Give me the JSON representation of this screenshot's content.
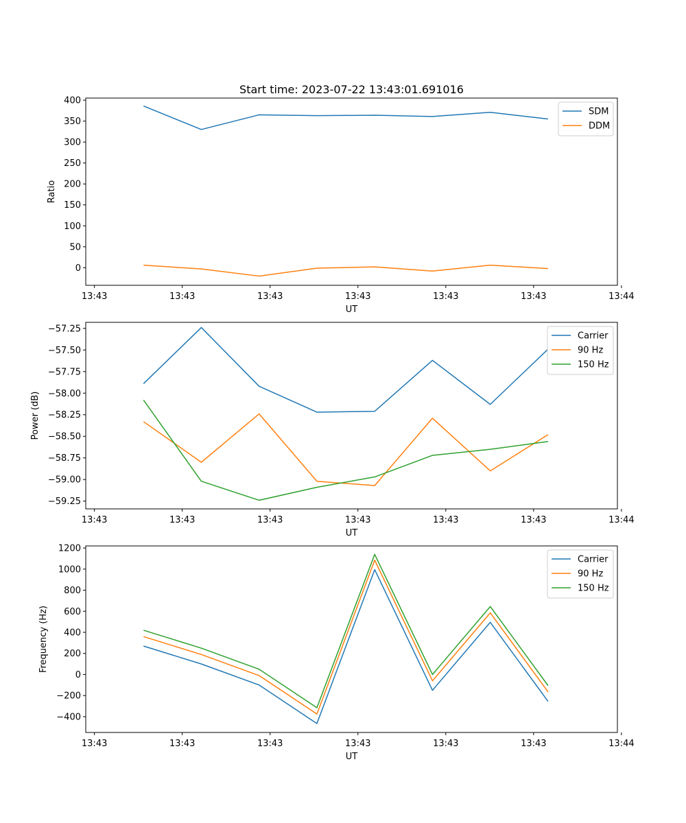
{
  "figure": {
    "title": "Start time: 2023-07-22 13:43:01.691016"
  },
  "chart_data": [
    {
      "type": "line",
      "title": "Start time: 2023-07-22 13:43:01.691016",
      "xlabel": "UT",
      "ylabel": "Ratio",
      "x": [
        1,
        2,
        3,
        4,
        5,
        6,
        7,
        8
      ],
      "xlim": [
        0,
        9.2
      ],
      "xticks": [
        0.15,
        1.67,
        3.19,
        4.71,
        6.23,
        7.75,
        9.27
      ],
      "xtick_labels": [
        "13:43",
        "13:43",
        "13:43",
        "13:43",
        "13:43",
        "13:43",
        "13:44"
      ],
      "ylim": [
        -42,
        405
      ],
      "yticks": [
        0,
        50,
        100,
        150,
        200,
        250,
        300,
        350,
        400
      ],
      "ytick_labels": [
        "0",
        "50",
        "100",
        "150",
        "200",
        "250",
        "300",
        "350",
        "400"
      ],
      "legend_position": "top-right",
      "series": [
        {
          "name": "SDM",
          "color": "#1f77b4",
          "values": [
            386,
            330,
            365,
            363,
            364,
            361,
            371,
            355
          ]
        },
        {
          "name": "DDM",
          "color": "#ff7f0e",
          "values": [
            6,
            -3,
            -20,
            -1,
            2,
            -8,
            6,
            -2
          ]
        }
      ]
    },
    {
      "type": "line",
      "title": "",
      "xlabel": "UT",
      "ylabel": "Power (dB)",
      "x": [
        1,
        2,
        3,
        4,
        5,
        6,
        7,
        8
      ],
      "xlim": [
        0,
        9.2
      ],
      "xticks": [
        0.15,
        1.67,
        3.19,
        4.71,
        6.23,
        7.75,
        9.27
      ],
      "xtick_labels": [
        "13:43",
        "13:43",
        "13:43",
        "13:43",
        "13:43",
        "13:43",
        "13:44"
      ],
      "ylim": [
        -59.34,
        -57.18
      ],
      "yticks": [
        -59.25,
        -59.0,
        -58.75,
        -58.5,
        -58.25,
        -58.0,
        -57.75,
        -57.5,
        -57.25
      ],
      "ytick_labels": [
        "−59.25",
        "−59.00",
        "−58.75",
        "−58.50",
        "−58.25",
        "−58.00",
        "−57.75",
        "−57.50",
        "−57.25"
      ],
      "legend_position": "top-right",
      "series": [
        {
          "name": "Carrier",
          "color": "#1f77b4",
          "values": [
            -57.89,
            -57.24,
            -57.92,
            -58.22,
            -58.21,
            -57.62,
            -58.13,
            -57.49
          ]
        },
        {
          "name": "90 Hz",
          "color": "#ff7f0e",
          "values": [
            -58.33,
            -58.8,
            -58.24,
            -59.02,
            -59.07,
            -58.29,
            -58.9,
            -58.48
          ]
        },
        {
          "name": "150 Hz",
          "color": "#2ca02c",
          "values": [
            -58.08,
            -59.02,
            -59.24,
            -59.09,
            -58.97,
            -58.72,
            -58.65,
            -58.56
          ]
        }
      ]
    },
    {
      "type": "line",
      "title": "",
      "xlabel": "UT",
      "ylabel": "Frequency (Hz)",
      "x": [
        1,
        2,
        3,
        4,
        5,
        6,
        7,
        8
      ],
      "xlim": [
        0,
        9.2
      ],
      "xticks": [
        0.15,
        1.67,
        3.19,
        4.71,
        6.23,
        7.75,
        9.27
      ],
      "xtick_labels": [
        "13:43",
        "13:43",
        "13:43",
        "13:43",
        "13:43",
        "13:43",
        "13:44"
      ],
      "ylim": [
        -550,
        1220
      ],
      "yticks": [
        -400,
        -200,
        0,
        200,
        400,
        600,
        800,
        1000,
        1200
      ],
      "ytick_labels": [
        "−400",
        "−200",
        "0",
        "200",
        "400",
        "600",
        "800",
        "1000",
        "1200"
      ],
      "legend_position": "top-right",
      "series": [
        {
          "name": "Carrier",
          "color": "#1f77b4",
          "values": [
            270,
            100,
            -100,
            -465,
            995,
            -150,
            495,
            -255
          ]
        },
        {
          "name": "90 Hz",
          "color": "#ff7f0e",
          "values": [
            360,
            190,
            -10,
            -375,
            1085,
            -60,
            585,
            -165
          ]
        },
        {
          "name": "150 Hz",
          "color": "#2ca02c",
          "values": [
            420,
            250,
            50,
            -315,
            1140,
            0,
            645,
            -105
          ]
        }
      ]
    }
  ]
}
